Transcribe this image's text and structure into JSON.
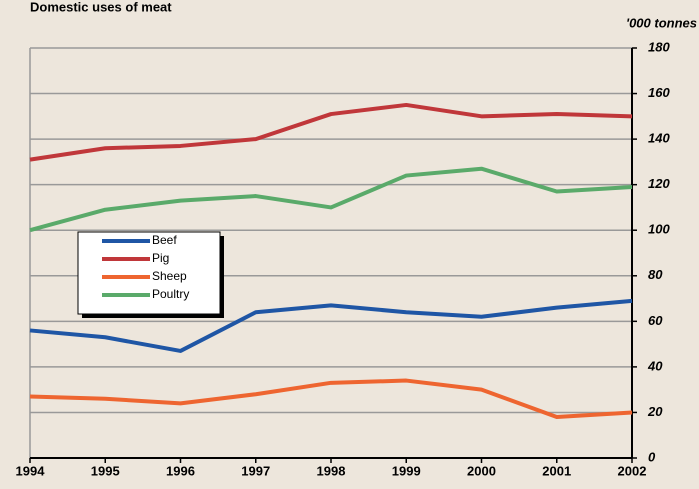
{
  "chart_data": {
    "type": "line",
    "title": "Domestic uses of meat",
    "y_axis_label": "'000 tonnes",
    "categories": [
      "1994",
      "1995",
      "1996",
      "1997",
      "1998",
      "1999",
      "2000",
      "2001",
      "2002"
    ],
    "series": [
      {
        "name": "Beef",
        "color": "#1f56a5",
        "values": [
          56,
          53,
          47,
          64,
          67,
          64,
          62,
          66,
          69
        ]
      },
      {
        "name": "Pig",
        "color": "#c0373a",
        "values": [
          131,
          136,
          137,
          140,
          151,
          155,
          150,
          151,
          150
        ]
      },
      {
        "name": "Sheep",
        "color": "#ee6530",
        "values": [
          27,
          26,
          24,
          28,
          33,
          34,
          30,
          18,
          20
        ]
      },
      {
        "name": "Poultry",
        "color": "#5aaa6a",
        "values": [
          100,
          109,
          113,
          115,
          110,
          124,
          127,
          117,
          119
        ]
      }
    ],
    "ylim": [
      0,
      180
    ],
    "yticks": [
      0,
      20,
      40,
      60,
      80,
      100,
      120,
      140,
      160,
      180
    ],
    "grid": true,
    "legend": "left"
  }
}
